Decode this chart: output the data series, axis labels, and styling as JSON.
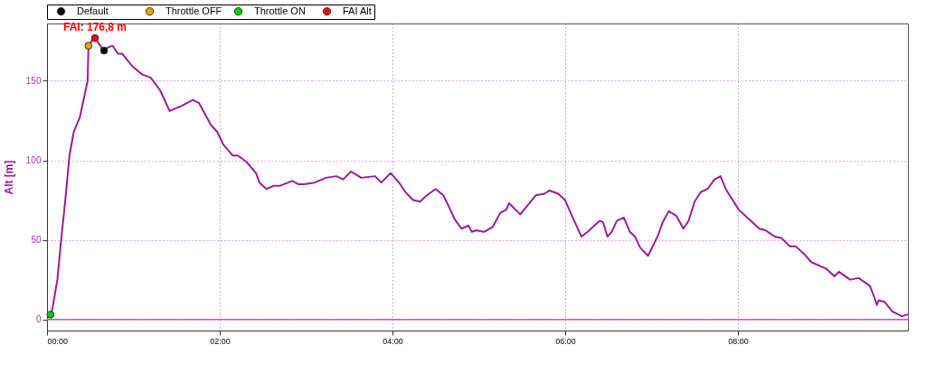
{
  "chart_data": {
    "type": "line",
    "ylabel": "Alt [m]",
    "series": [
      {
        "color": "#9b1b9b",
        "marker": "none",
        "line_style": "solid",
        "x": [
          0.04,
          0.06,
          0.12,
          0.16,
          0.21,
          0.26,
          0.31,
          0.38,
          0.47,
          0.48,
          0.53,
          0.555,
          0.63,
          0.66,
          0.71,
          0.76,
          0.82,
          0.87,
          0.99,
          1.1,
          1.2,
          1.31,
          1.42,
          1.55,
          1.69,
          1.76,
          1.9,
          1.97,
          2.04,
          2.15,
          2.21,
          2.31,
          2.42,
          2.46,
          2.54,
          2.63,
          2.7,
          2.84,
          2.91,
          2.98,
          3.1,
          3.23,
          3.35,
          3.43,
          3.52,
          3.64,
          3.8,
          3.87,
          3.98,
          4.09,
          4.15,
          4.24,
          4.32,
          4.4,
          4.5,
          4.59,
          4.67,
          4.72,
          4.8,
          4.88,
          4.92,
          4.97,
          5.06,
          5.16,
          5.25,
          5.32,
          5.35,
          5.48,
          5.66,
          5.76,
          5.82,
          5.92,
          6.0,
          6.08,
          6.19,
          6.26,
          6.4,
          6.44,
          6.49,
          6.54,
          6.6,
          6.68,
          6.75,
          6.81,
          6.87,
          6.96,
          7.07,
          7.13,
          7.2,
          7.29,
          7.37,
          7.43,
          7.5,
          7.57,
          7.65,
          7.73,
          7.8,
          7.86,
          8.01,
          8.15,
          8.25,
          8.32,
          8.43,
          8.51,
          8.6,
          8.67,
          8.77,
          8.85,
          9.02,
          9.12,
          9.17,
          9.3,
          9.4,
          9.53,
          9.58,
          9.61,
          9.63,
          9.7,
          9.79,
          9.9,
          9.96
        ],
        "values": [
          3,
          6,
          25,
          48,
          74,
          103,
          118,
          127,
          150,
          172,
          176,
          176.8,
          171,
          169,
          171,
          172,
          167,
          167,
          159,
          154,
          152,
          144,
          131,
          134,
          138,
          136,
          122,
          118,
          110,
          103,
          103,
          99,
          92,
          86,
          82,
          84,
          84,
          87,
          85,
          85,
          86,
          89,
          90,
          88,
          93,
          89,
          90,
          86,
          92,
          85,
          80,
          75,
          74,
          78,
          82,
          78,
          69,
          63,
          57,
          59,
          55,
          56,
          55,
          58,
          67,
          69,
          73,
          66,
          78,
          79,
          81,
          79,
          75,
          65,
          52,
          55,
          62,
          61,
          52,
          55,
          62,
          64,
          55,
          52,
          45,
          40,
          52,
          61,
          68,
          65,
          57,
          62,
          74,
          80,
          82,
          88,
          90,
          82,
          69,
          62,
          57,
          56,
          52,
          51,
          46,
          46,
          41,
          36,
          32,
          27,
          30,
          25,
          26,
          21,
          14,
          9,
          12,
          11,
          5,
          2,
          3
        ]
      },
      {
        "name": "Default",
        "type": "scatter",
        "marker": "circle",
        "color": "#000000",
        "x": [
          0.66
        ],
        "values": [
          169
        ]
      },
      {
        "name": "Throttle OFF",
        "type": "scatter",
        "marker": "circle",
        "color": "#f0a000",
        "x": [
          0.48
        ],
        "values": [
          172
        ]
      },
      {
        "name": "Throttle ON",
        "type": "scatter",
        "marker": "circle",
        "color": "#00d000",
        "x": [
          0.04
        ],
        "values": [
          3
        ]
      },
      {
        "name": "FAI Alt",
        "type": "scatter",
        "marker": "circle",
        "color": "#ff0000",
        "x": [
          0.555
        ],
        "values": [
          176.8
        ]
      }
    ],
    "xlim": [
      0,
      9.97
    ],
    "xticks": [
      {
        "value": 0,
        "label": "00:00"
      },
      {
        "value": 2,
        "label": "02:00"
      },
      {
        "value": 4,
        "label": "04:00"
      },
      {
        "value": 6,
        "label": "06:00"
      },
      {
        "value": 8,
        "label": "08:00"
      }
    ],
    "ylim": [
      -7,
      186
    ],
    "yticks": [
      0,
      50,
      100,
      150
    ],
    "grid": true,
    "legend": "top left",
    "ref_lines": [
      {
        "axis": "y",
        "value": 0,
        "color": "#cc55cc",
        "line_style": "solid"
      }
    ],
    "annotations": [
      {
        "text": "FAI: 176,8 m",
        "x": 0.555,
        "y": 176.8
      }
    ]
  }
}
